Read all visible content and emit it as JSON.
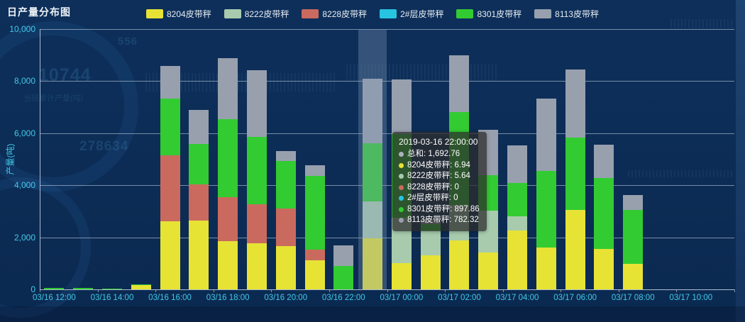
{
  "title": "日产量分布图",
  "legend": [
    {
      "name": "8204皮带秤",
      "color": "#e6e335"
    },
    {
      "name": "8222皮带秤",
      "color": "#a8cbae"
    },
    {
      "name": "8228皮带秤",
      "color": "#ca6a5e"
    },
    {
      "name": "2#层皮带秤",
      "color": "#27c3e1"
    },
    {
      "name": "8301皮带秤",
      "color": "#32cb32"
    },
    {
      "name": "8113皮带秤",
      "color": "#98a0ae"
    }
  ],
  "y_axis": {
    "name": "产量(吨)",
    "max": 10000,
    "tick_values": [
      0,
      2000,
      4000,
      6000,
      8000,
      10000
    ],
    "tick_labels": [
      "0",
      "2,000",
      "4,000",
      "6,000",
      "8,000",
      "10,000"
    ]
  },
  "x_axis": {
    "visible_labels": [
      "03/16 12:00",
      "03/16 14:00",
      "03/16 16:00",
      "03/16 18:00",
      "03/16 20:00",
      "03/16 22:00",
      "03/17 00:00",
      "03/17 02:00",
      "03/17 04:00",
      "03/17 06:00",
      "03/17 08:00",
      "03/17 10:00"
    ]
  },
  "chart_data": {
    "type": "bar",
    "stacked": true,
    "grid": true,
    "legend_position": "top",
    "ylim": [
      0,
      10000
    ],
    "categories": [
      "03/16 12:00",
      "03/16 13:00",
      "03/16 14:00",
      "03/16 15:00",
      "03/16 16:00",
      "03/16 17:00",
      "03/16 18:00",
      "03/16 19:00",
      "03/16 20:00",
      "03/16 21:00",
      "03/16 22:00",
      "03/16 23:00",
      "03/17 00:00",
      "03/17 01:00",
      "03/17 02:00",
      "03/17 03:00",
      "03/17 04:00",
      "03/17 05:00",
      "03/17 06:00",
      "03/17 07:00",
      "03/17 08:00",
      "03/17 09:00",
      "03/17 10:00",
      "03/17 11:00"
    ],
    "series": [
      {
        "name": "8204皮带秤",
        "color": "#e6e335",
        "values": [
          0,
          0,
          0,
          150,
          2615,
          2640,
          1860,
          1780,
          1670,
          1130,
          6.94,
          1970,
          1000,
          1300,
          1890,
          1430,
          2260,
          1615,
          3040,
          1560,
          970,
          0,
          0,
          0
        ]
      },
      {
        "name": "8222皮带秤",
        "color": "#a8cbae",
        "values": [
          0,
          0,
          0,
          0,
          0,
          0,
          0,
          0,
          0,
          0,
          5.64,
          1400,
          1750,
          950,
          1340,
          1590,
          540,
          0,
          0,
          0,
          0,
          0,
          0,
          0
        ]
      },
      {
        "name": "8228皮带秤",
        "color": "#ca6a5e",
        "values": [
          0,
          0,
          0,
          0,
          2535,
          1400,
          1670,
          1480,
          1430,
          400,
          0,
          0,
          0,
          0,
          0,
          0,
          0,
          0,
          0,
          0,
          0,
          0,
          0,
          0
        ]
      },
      {
        "name": "2#层皮带秤",
        "color": "#27c3e1",
        "values": [
          0,
          0,
          0,
          0,
          0,
          0,
          0,
          0,
          0,
          0,
          0,
          0,
          0,
          0,
          0,
          0,
          0,
          0,
          0,
          0,
          0,
          0,
          0,
          0
        ]
      },
      {
        "name": "8301皮带秤",
        "color": "#32cb32",
        "values": [
          60,
          45,
          25,
          50,
          2180,
          1540,
          3020,
          2590,
          1830,
          2830,
          897.86,
          2240,
          3220,
          270,
          3590,
          1370,
          1290,
          2940,
          2800,
          2720,
          2075,
          0,
          0,
          0
        ]
      },
      {
        "name": "8113皮带秤",
        "color": "#98a0ae",
        "values": [
          0,
          0,
          0,
          0,
          1240,
          1320,
          2320,
          2560,
          380,
          410,
          782.32,
          2480,
          2100,
          180,
          2160,
          1730,
          1430,
          2780,
          2615,
          1290,
          590,
          0,
          0,
          0
        ]
      }
    ],
    "highlight_index": 11
  },
  "tooltip": {
    "title": "2019-03-16 22:00:00",
    "rows": [
      {
        "label": "总和",
        "value": "1,692.76",
        "color": "#aab2ba"
      },
      {
        "label": "8204皮带秤",
        "value": "6.94",
        "color": "#e6e335"
      },
      {
        "label": "8222皮带秤",
        "value": "5.64",
        "color": "#a8cbae"
      },
      {
        "label": "8228皮带秤",
        "value": "0",
        "color": "#ca6a5e"
      },
      {
        "label": "2#层皮带秤",
        "value": "0",
        "color": "#27c3e1"
      },
      {
        "label": "8301皮带秤",
        "value": "897.86",
        "color": "#32cb32"
      },
      {
        "label": "8113皮带秤",
        "value": "782.32",
        "color": "#98a0ae"
      }
    ]
  },
  "background_overlay": {
    "gauge_small_value": "556",
    "gauge_big_value": "10744",
    "gauge_caption": "当班累计产量(吨)",
    "gauge_secondary_value": "278634"
  }
}
